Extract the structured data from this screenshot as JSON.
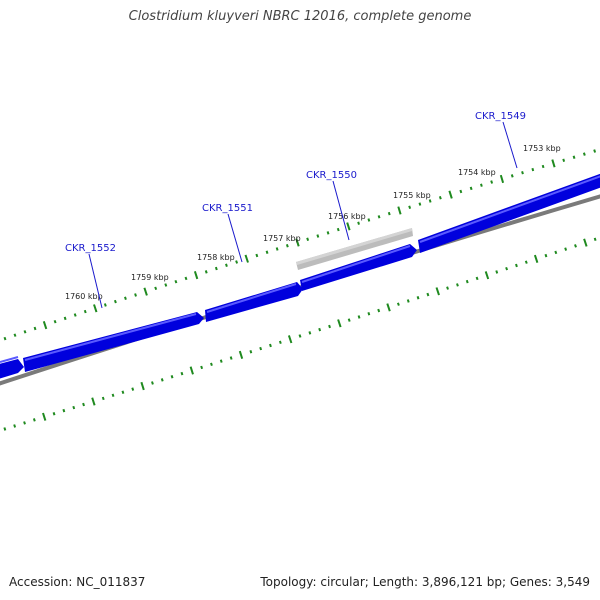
{
  "title": "Clostridium kluyveri NBRC 12016, complete genome",
  "footer": {
    "accession": "Accession: NC_011837",
    "summary": "Topology: circular; Length: 3,896,121 bp; Genes: 3,549"
  },
  "colors": {
    "gene_fill": "#0000dd",
    "gene_highlight": "#5a5aff",
    "selected_gene": "#bcbcbc",
    "backbone": "#7a7a7a",
    "tick": "#1f8a1f",
    "label": "#1a1acc",
    "title": "#444444"
  },
  "ruler": {
    "unit": "kbp",
    "labels": [
      "1753 kbp",
      "1754 kbp",
      "1755 kbp",
      "1756 kbp",
      "1757 kbp",
      "1758 kbp",
      "1759 kbp",
      "1760 kbp"
    ]
  },
  "genes": [
    {
      "name": "CKR_1549",
      "strand": "+",
      "selected": false
    },
    {
      "name": "CKR_1550",
      "strand": "-",
      "selected": true
    },
    {
      "name": "CKR_1551",
      "strand": "+",
      "selected": false
    },
    {
      "name": "CKR_1552",
      "strand": "+",
      "selected": false
    }
  ]
}
